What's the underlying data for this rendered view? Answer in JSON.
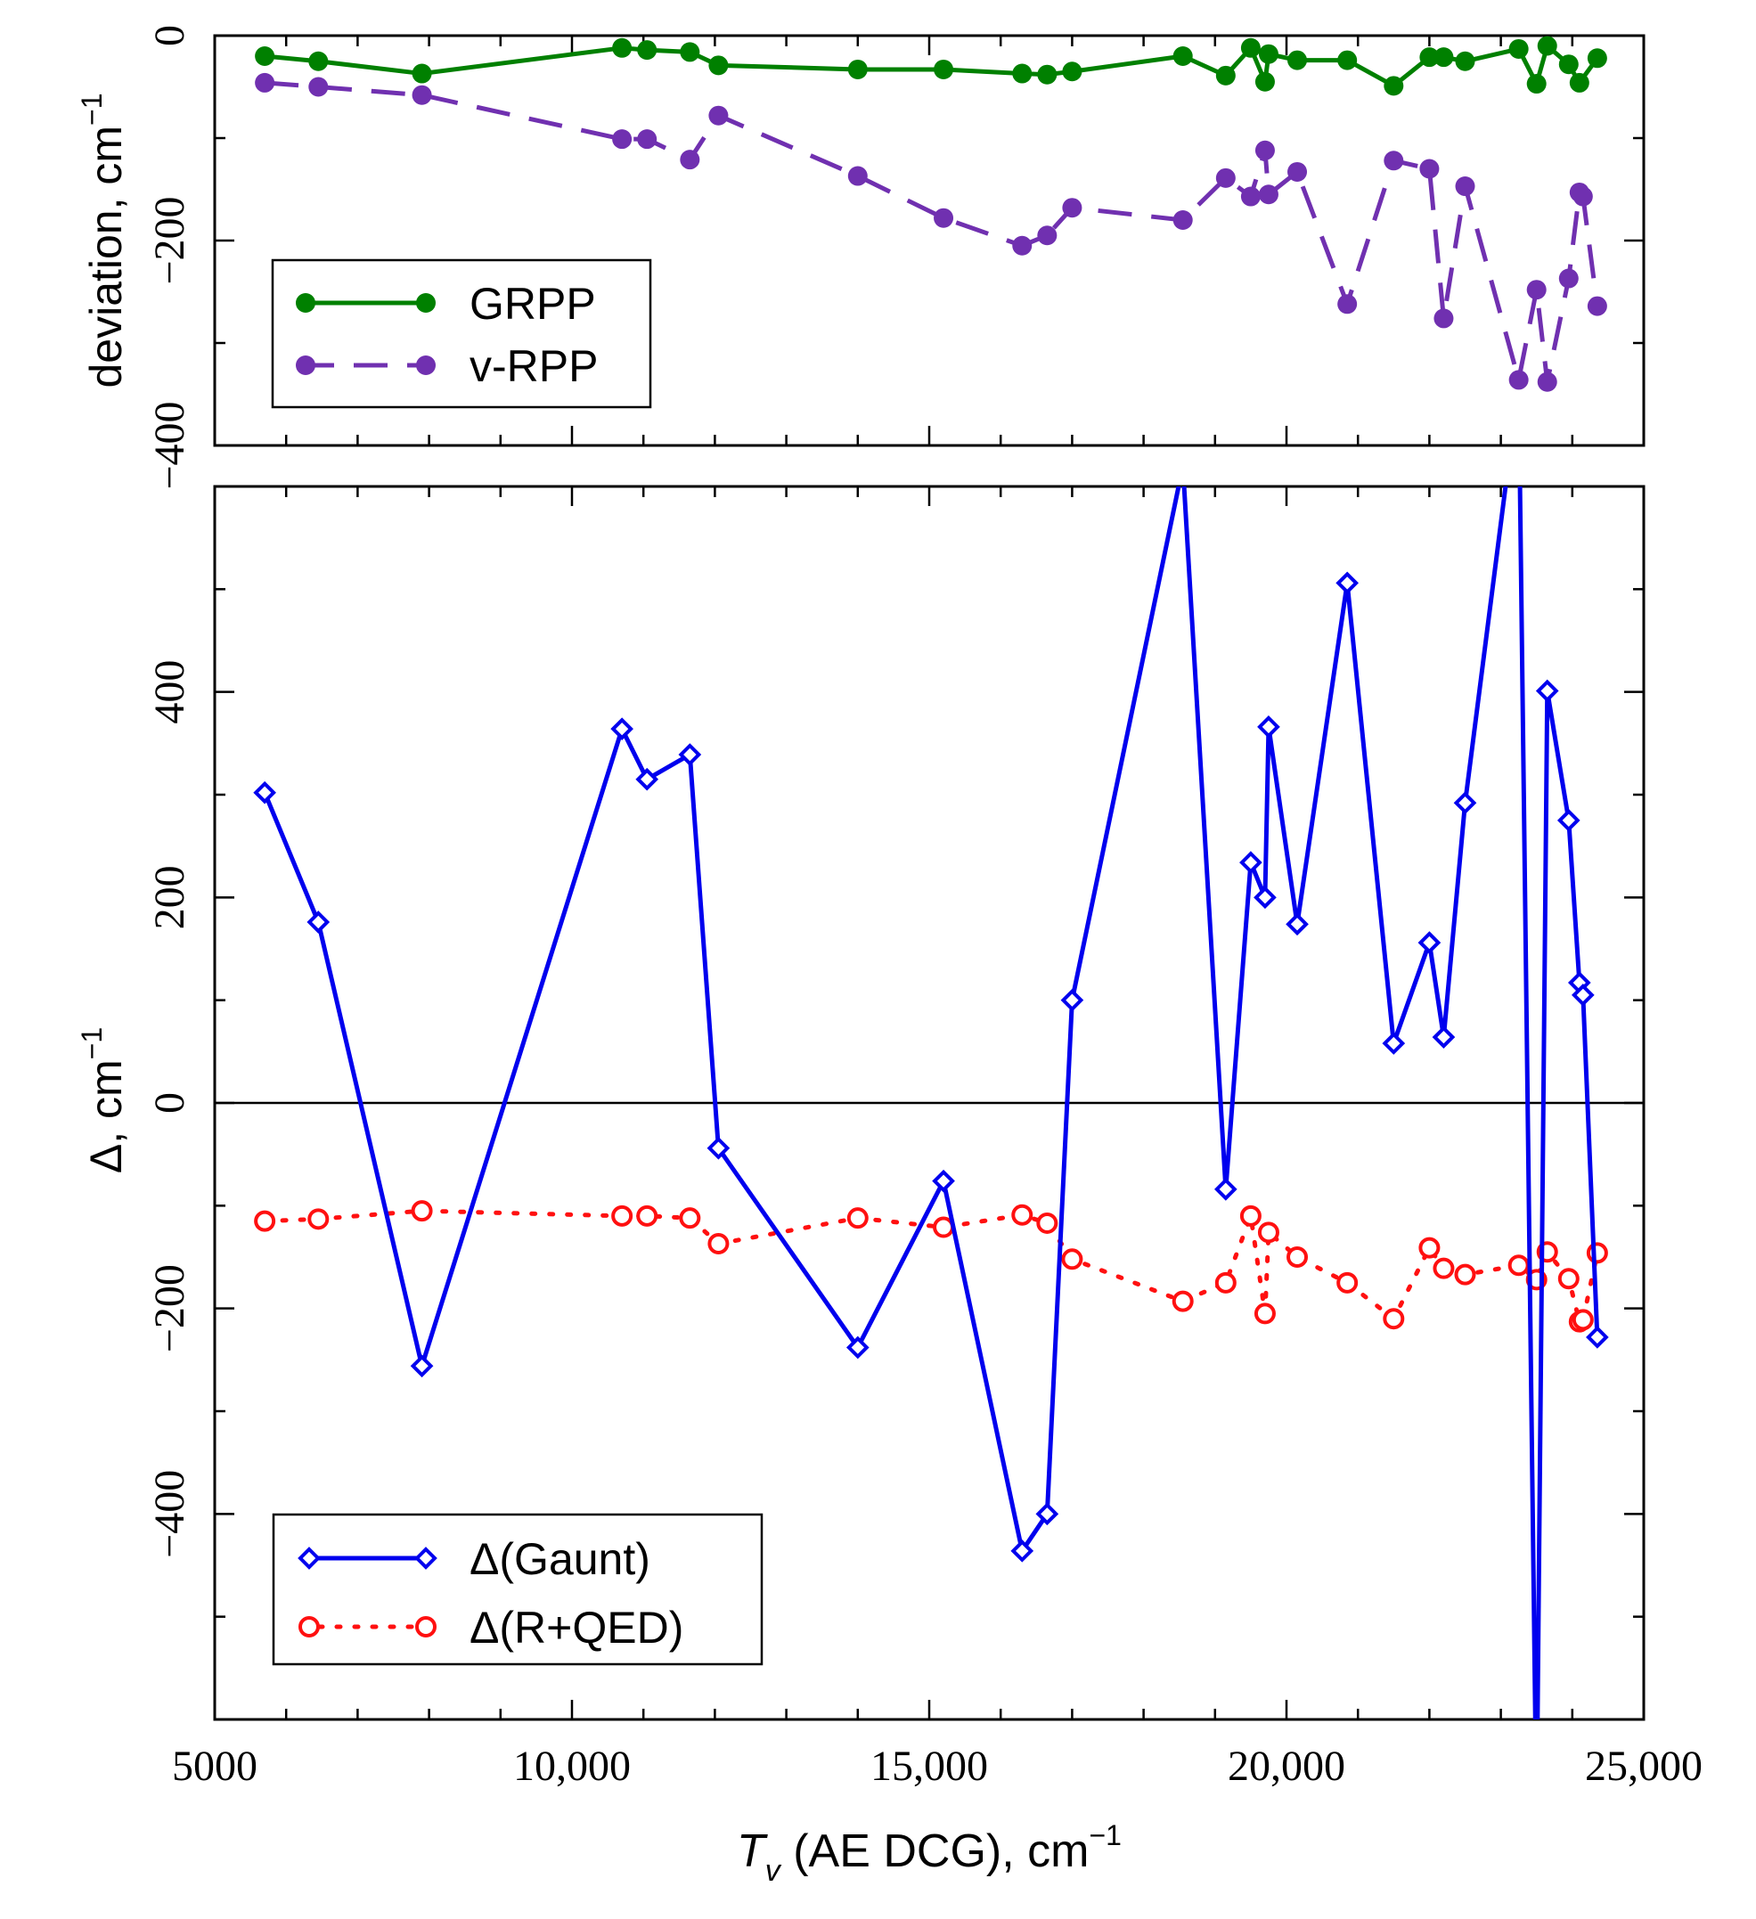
{
  "chart_data": [
    {
      "panel": "top",
      "type": "line",
      "ylabel": "deviation, cm",
      "ylabel_sup": "−1",
      "ylim": [
        -400,
        0
      ],
      "yticks": [
        0,
        -200,
        -400
      ],
      "yticks_labels": [
        "0",
        "−200",
        "−400"
      ],
      "legend_position": "bottom-left",
      "series": [
        {
          "name": "GRPP",
          "color": "#008000",
          "style": "solid",
          "marker": "filled-circle",
          "x": [
            5700,
            6450,
            7900,
            10700,
            11050,
            11650,
            12050,
            14000,
            15200,
            16300,
            16650,
            17000,
            18550,
            19150,
            19500,
            19700,
            19750,
            20150,
            20850,
            21500,
            22000,
            22200,
            22500,
            23250,
            23500,
            23650,
            23950,
            24100,
            24350
          ],
          "y": [
            -20,
            -25,
            -37,
            -12,
            -14,
            -16,
            -29,
            -33,
            -33,
            -37,
            -38,
            -35,
            -20,
            -39,
            -12,
            -45,
            -18,
            -24,
            -24,
            -49,
            -21,
            -21,
            -25,
            -13,
            -47,
            -10,
            -28,
            -46,
            -22
          ]
        },
        {
          "name": "v-RPP",
          "color": "#7030b0",
          "style": "dashed",
          "marker": "filled-circle",
          "x": [
            5700,
            6450,
            7900,
            10700,
            11050,
            11650,
            12050,
            14000,
            15200,
            16300,
            16650,
            17000,
            18550,
            19150,
            19500,
            19700,
            19750,
            20150,
            20850,
            21500,
            22000,
            22200,
            22500,
            23250,
            23500,
            23650,
            23950,
            24100,
            24150,
            24350
          ],
          "y": [
            -46,
            -50,
            -58,
            -101,
            -101,
            -121,
            -78,
            -137,
            -178,
            -205,
            -195,
            -168,
            -180,
            -139,
            -157,
            -112,
            -155,
            -133,
            -262,
            -122,
            -130,
            -276,
            -147,
            -336,
            -248,
            -338,
            -237,
            -153,
            -157,
            -264
          ]
        }
      ]
    },
    {
      "panel": "bottom",
      "type": "line",
      "title": "",
      "xlabel": "T",
      "xlabel_sub": "v",
      "xlabel_rest": " (AE DCG), cm",
      "xlabel_sup": "−1",
      "ylabel": "Δ, cm",
      "ylabel_sup": "−1",
      "xlim": [
        5000,
        25000
      ],
      "ylim": [
        -600,
        600
      ],
      "xticks": [
        5000,
        10000,
        15000,
        20000,
        25000
      ],
      "xticks_labels": [
        "5000",
        "10,000",
        "15,000",
        "20,000",
        "25,000"
      ],
      "yticks": [
        400,
        200,
        0,
        -200,
        -400
      ],
      "yticks_labels": [
        "400",
        "200",
        "0",
        "−200",
        "−400"
      ],
      "zero_line": true,
      "legend_position": "bottom-left",
      "series": [
        {
          "name": "Δ(Gaunt)",
          "color": "#0000ee",
          "style": "solid",
          "marker": "open-diamond",
          "x": [
            5700,
            6450,
            7900,
            10700,
            11050,
            11650,
            12050,
            14000,
            15200,
            16300,
            16650,
            17000,
            18550,
            19150,
            19500,
            19700,
            19750,
            20150,
            20850,
            21500,
            22000,
            22200,
            22500,
            23250,
            23500,
            23650,
            23950,
            24100,
            24150,
            24350
          ],
          "y": [
            302,
            176,
            -256,
            364,
            315,
            339,
            -44,
            -238,
            -76,
            -436,
            -400,
            100,
            620,
            -84,
            234,
            200,
            366,
            174,
            506,
            58,
            156,
            64,
            292,
            700,
            -700,
            401,
            275,
            117,
            105,
            -228
          ],
          "markers_hidden": [
            false,
            false,
            false,
            false,
            false,
            false,
            false,
            false,
            false,
            false,
            false,
            false,
            true,
            false,
            false,
            false,
            false,
            false,
            false,
            false,
            false,
            false,
            false,
            true,
            true,
            false,
            false,
            false,
            false,
            false
          ]
        },
        {
          "name": "Δ(R+QED)",
          "color": "#ff1010",
          "style": "dotted",
          "marker": "open-circle",
          "x": [
            5700,
            6450,
            7900,
            10700,
            11050,
            11650,
            12050,
            14000,
            15200,
            16300,
            16650,
            17000,
            18550,
            19150,
            19500,
            19700,
            19750,
            20150,
            20850,
            21500,
            22000,
            22200,
            22500,
            23250,
            23500,
            23650,
            23950,
            24100,
            24150,
            24350
          ],
          "y": [
            -115,
            -113,
            -105,
            -110,
            -110,
            -112,
            -137,
            -112,
            -121,
            -109,
            -117,
            -152,
            -193,
            -175,
            -110,
            -205,
            -126,
            -150,
            -175,
            -210,
            -141,
            -161,
            -167,
            -158,
            -172,
            -145,
            -171,
            -213,
            -211,
            -146
          ]
        }
      ]
    }
  ]
}
